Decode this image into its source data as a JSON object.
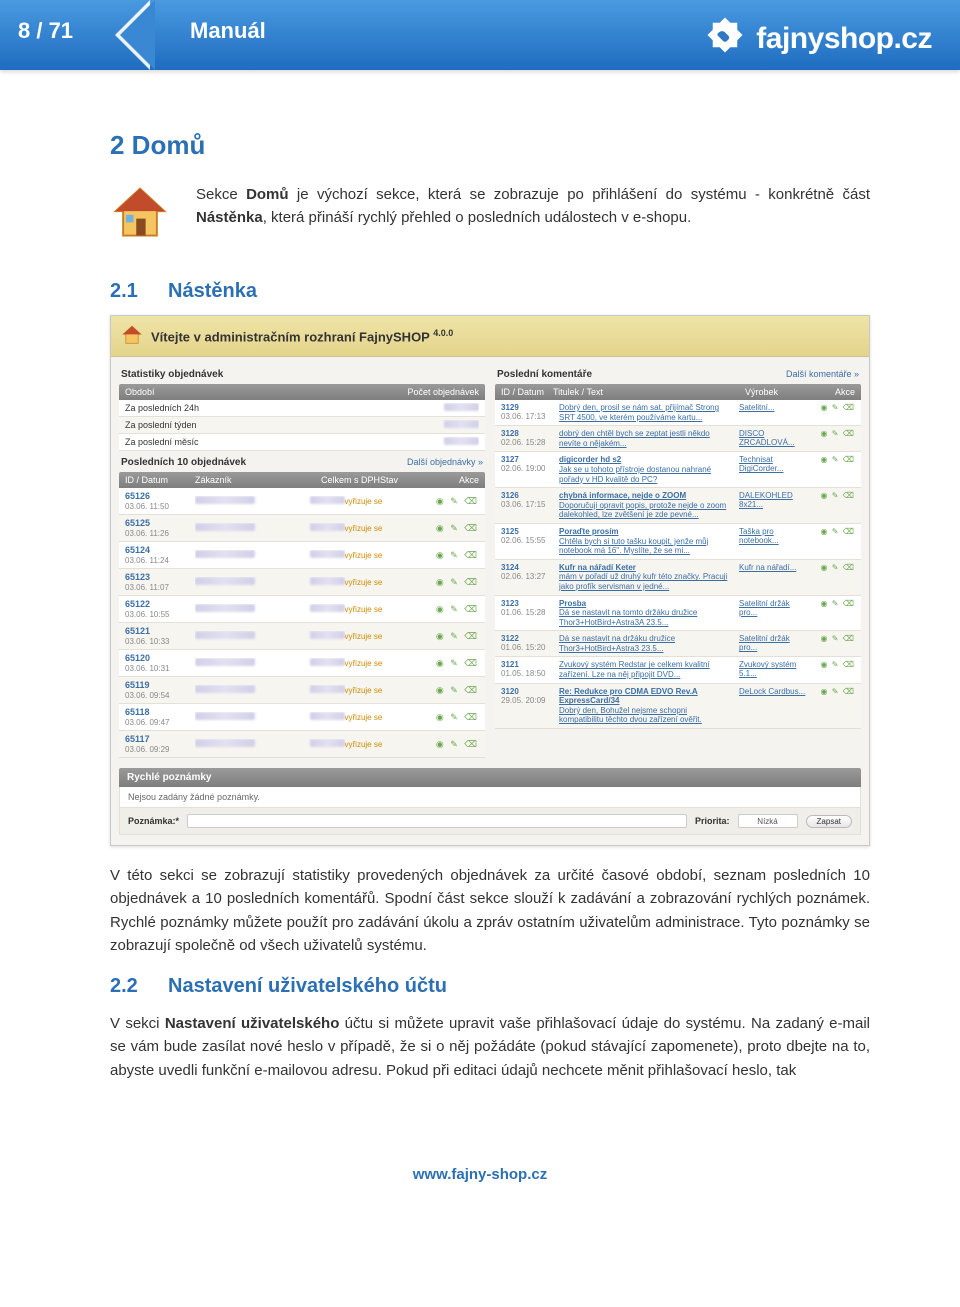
{
  "header": {
    "page_indicator": "8 / 71",
    "manual_label": "Manuál",
    "logo_text": "fajnyshop.cz"
  },
  "section2": {
    "heading": "2 Domů",
    "intro_parts": {
      "p1": "Sekce ",
      "b1": "Domů",
      "p2": " je výchozí sekce, která se zobrazuje po přihlášení do systému - konkrétně část ",
      "b2": "Nástěnka",
      "p3": ", která přináší rychlý přehled o posledních událostech v e-shopu."
    },
    "sub1": {
      "num": "2.1",
      "title": "Nástěnka"
    },
    "para1": "V této sekci se zobrazují statistiky provedených objednávek za určité časové období, seznam posledních 10 objednávek a 10 posledních komentářů.  Spodní část sekce slouží k zadávání a zobrazování rychlých poznámek. Rychlé poznámky můžete použít pro zadávání úkolu a zpráv ostatním uživatelům administrace. Tyto poznámky se zobrazují společně od všech uživatelů systému.",
    "sub2": {
      "num": "2.2",
      "title": "Nastavení uživatelského účtu"
    },
    "para2_parts": {
      "p1": "V sekci ",
      "b1": "Nastavení uživatelského",
      "p2": " účtu si můžete upravit vaše přihlašovací údaje do systému. Na zadaný e-mail se vám bude zasílat nové heslo v případě, že si o něj požádáte (pokud stávající zapomenete), proto dbejte na to, abyste uvedli funkční e-mailovou adresu. Pokud při editaci údajů nechcete měnit přihlašovací heslo, tak"
    }
  },
  "screenshot": {
    "welcome": "Vítejte v administračním rozhraní FajnySHOP",
    "version": "4.0.0",
    "left": {
      "stats_title": "Statistiky objednávek",
      "stats_head": {
        "period": "Období",
        "count": "Počet objednávek"
      },
      "stats_rows": [
        {
          "label": "Za posledních 24h"
        },
        {
          "label": "Za poslední týden"
        },
        {
          "label": "Za poslední měsíc"
        }
      ],
      "orders_title": "Posledních 10 objednávek",
      "orders_link": "Další objednávky »",
      "orders_head": {
        "id": "ID / Datum",
        "cust": "Zákazník",
        "total": "Celkem s DPH",
        "state": "Stav",
        "act": "Akce"
      },
      "status_text": "vyřizuje se",
      "orders": [
        {
          "id": "65126",
          "date": "03.06. 11:50"
        },
        {
          "id": "65125",
          "date": "03.06. 11:26"
        },
        {
          "id": "65124",
          "date": "03.06. 11:24"
        },
        {
          "id": "65123",
          "date": "03.06. 11:07"
        },
        {
          "id": "65122",
          "date": "03.06. 10:55"
        },
        {
          "id": "65121",
          "date": "03.06. 10:33"
        },
        {
          "id": "65120",
          "date": "03.06. 10:31"
        },
        {
          "id": "65119",
          "date": "03.06. 09:54"
        },
        {
          "id": "65118",
          "date": "03.06. 09:47"
        },
        {
          "id": "65117",
          "date": "03.06. 09:29"
        }
      ]
    },
    "right": {
      "comments_title": "Poslední komentáře",
      "comments_link": "Další komentáře »",
      "comments_head": {
        "id": "ID / Datum",
        "title": "Titulek / Text",
        "prod": "Výrobek",
        "act": "Akce"
      },
      "comments": [
        {
          "id": "3129",
          "date": "03.06. 17:13",
          "text": "Dobrý den, prosil se nám sat. přijímač Strong SRT 4500, ve kterém používáme kartu...",
          "prod": "Satelitní..."
        },
        {
          "id": "3128",
          "date": "02.06. 15:28",
          "text": "dobrý den chtěl bych se zeptat jestli někdo nevíte o nějakém...",
          "prod": "DISCO ZRCADLOVÁ..."
        },
        {
          "id": "3127",
          "date": "02.06. 19:00",
          "title": "digicorder hd s2",
          "text": "Jak se u tohoto přístroje dostanou nahrané pořady v HD kvalitě do PC?",
          "prod": "Technisat DigiCorder..."
        },
        {
          "id": "3126",
          "date": "03.06. 17:15",
          "title": "chybná informace, nejde o ZOOM",
          "text": "Doporučuji opravit popis, protože nejde o zoom dalekohled, lze zvětšení je zde pevné...",
          "prod": "DALEKOHLED 8x21..."
        },
        {
          "id": "3125",
          "date": "02.06. 15:55",
          "title": "Poraďte prosím",
          "text": "Chtěla bych si tuto tašku koupit, jenže můj notebook má 16\". Myslíte, že se mi...",
          "prod": "Taška pro notebook..."
        },
        {
          "id": "3124",
          "date": "02.06. 13:27",
          "title": "Kufr na nářadí Keter",
          "text": "mám v pořadí už druhý kufr této značky. Pracuji jako profík servisman v jedné...",
          "prod": "Kufr na nářadí..."
        },
        {
          "id": "3123",
          "date": "01.06. 15:28",
          "title": "Prosba",
          "text": "Dá se nastavit na tomto držáku družice Thor3+HotBird+Astra3A 23.5...",
          "prod": "Satelitní držák pro..."
        },
        {
          "id": "3122",
          "date": "01.06. 15:20",
          "text": "Dá se nastavit na držáku družice Thor3+HotBird+Astra3 23.5...",
          "prod": "Satelitní držák pro..."
        },
        {
          "id": "3121",
          "date": "01.05. 18:50",
          "text": "Zvukový systém Redstar je celkem kvalitní zařízení. Lze na něj připojit DVD...",
          "prod": "Zvukový systém 5.1..."
        },
        {
          "id": "3120",
          "date": "29.05. 20:09",
          "title": "Re: Redukce pro CDMA EDVO Rev.A ExpressCard/34",
          "text": "Dobrý den, Bohužel nejsme schopni kompatibilitu těchto dvou zařízení ověřit.",
          "prod": "DeLock Cardbus..."
        }
      ]
    },
    "notes": {
      "heading": "Rychlé poznámky",
      "empty": "Nejsou zadány žádné poznámky.",
      "field_label": "Poznámka:*",
      "priority_label": "Priorita:",
      "priority_value": "Nízká",
      "button": "Zapsat"
    }
  },
  "footer": {
    "url": "www.fajny-shop.cz"
  }
}
